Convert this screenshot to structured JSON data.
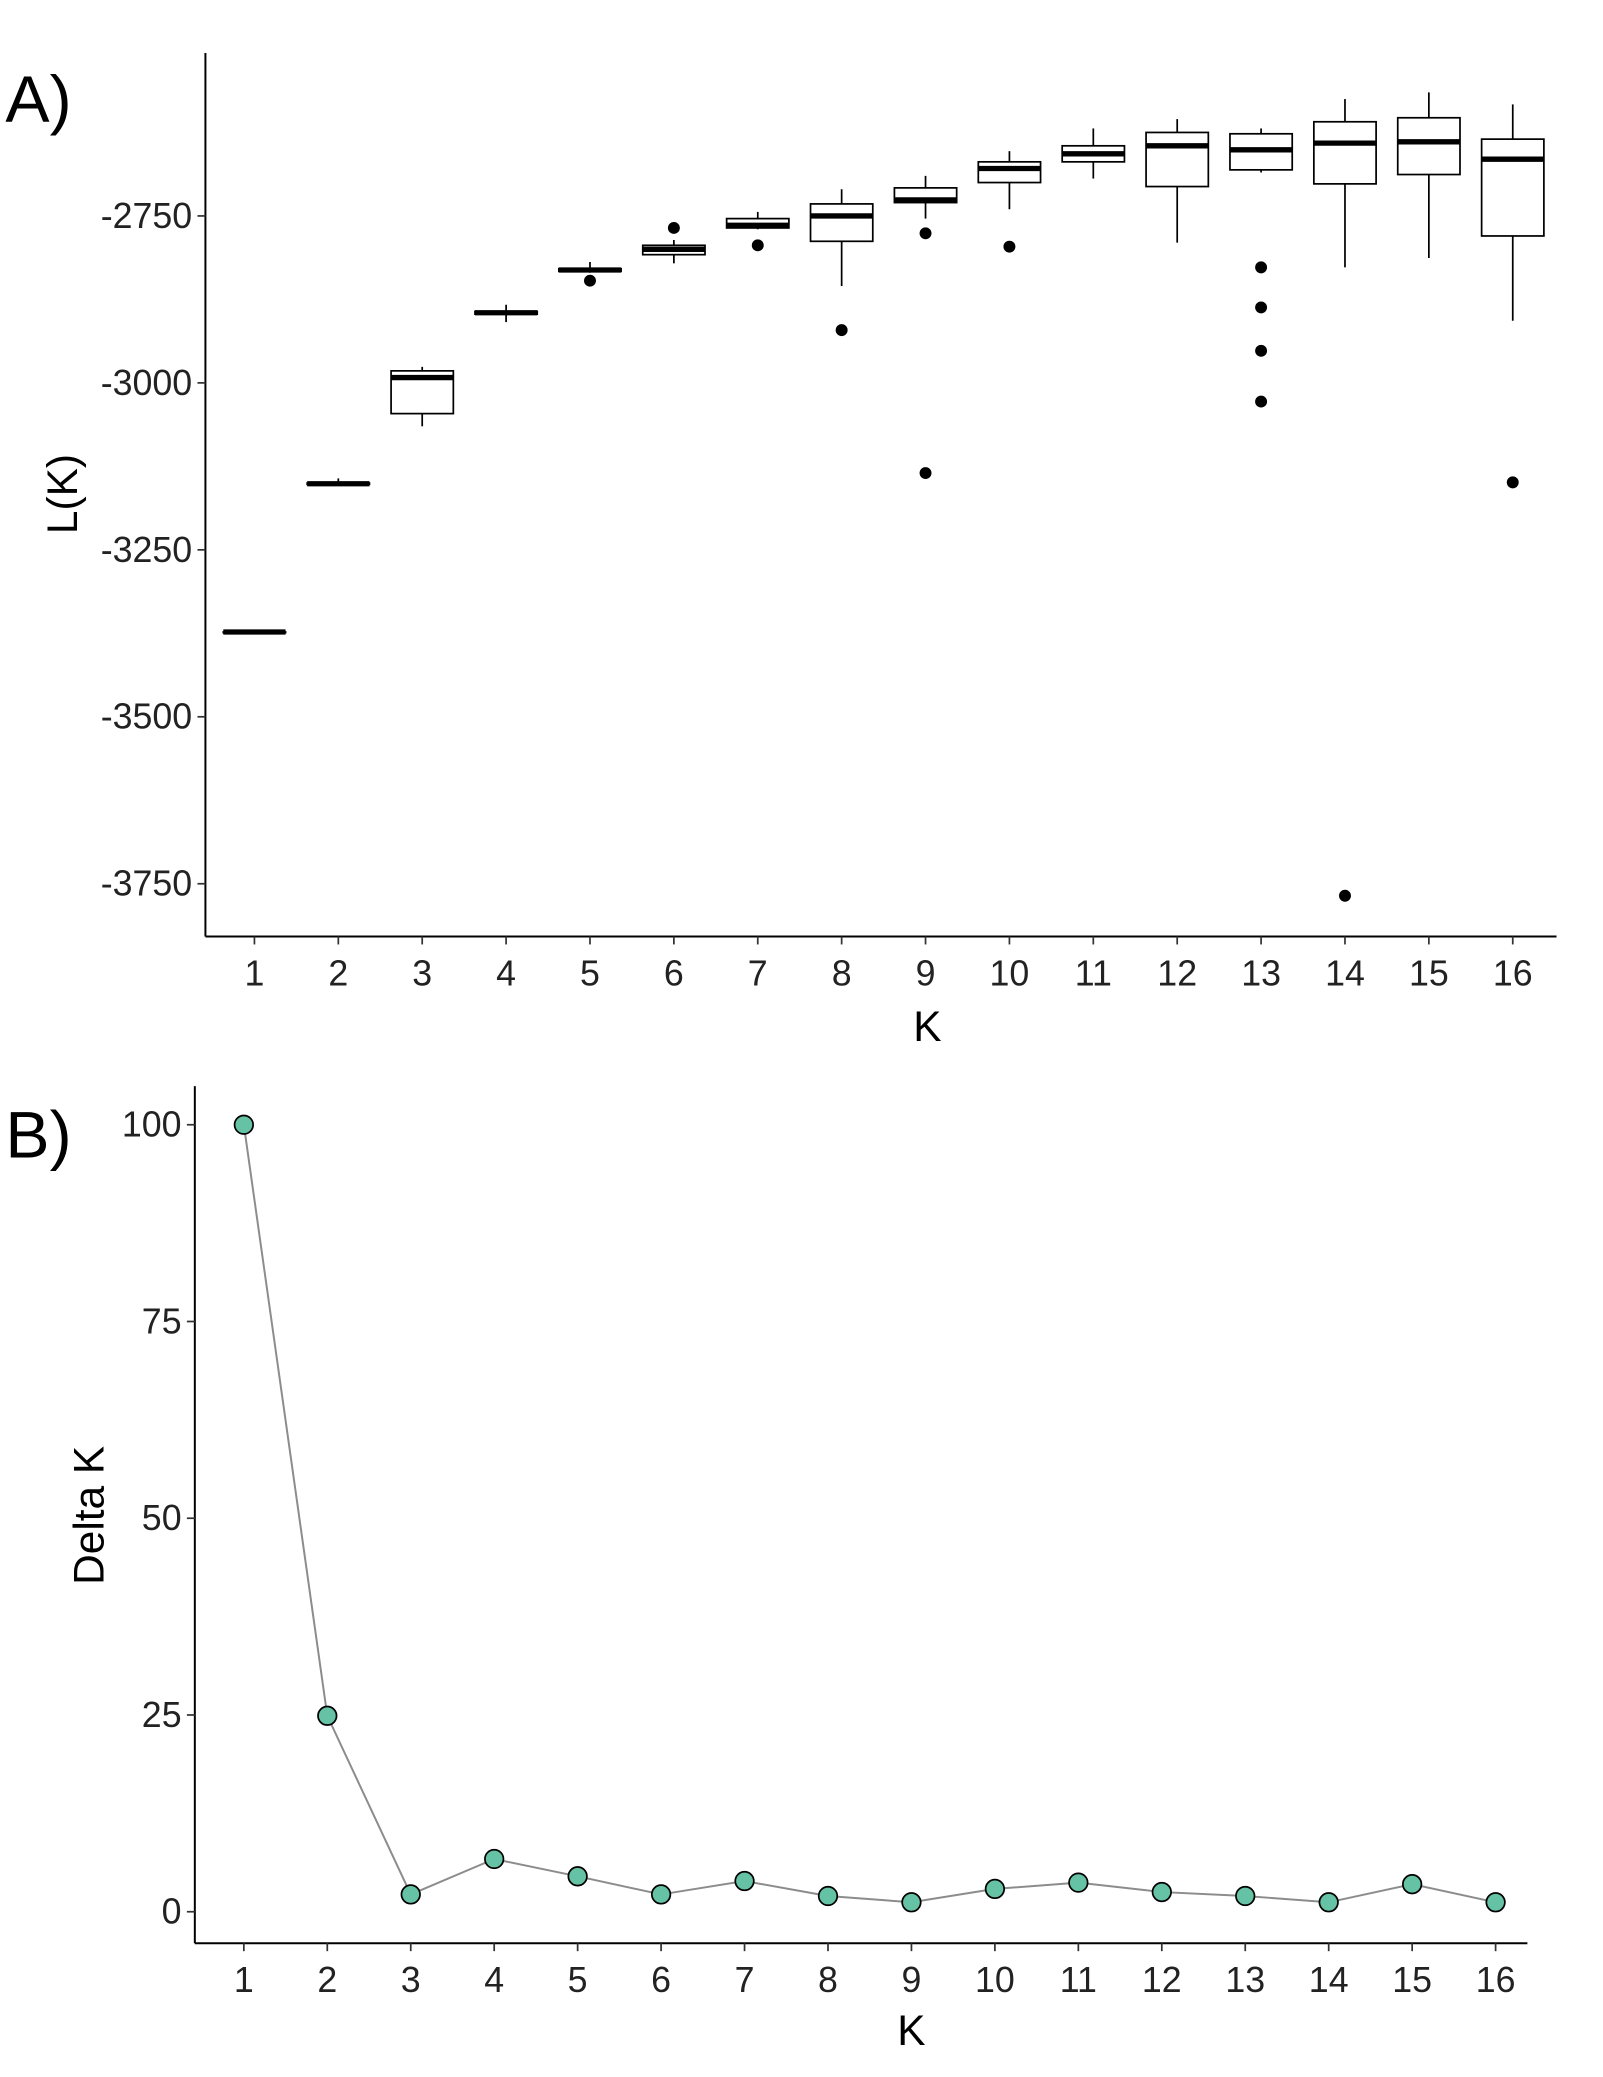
{
  "chart_data": [
    {
      "type": "box",
      "panel_label": "A)",
      "xlabel": "K",
      "ylabel": "L(K)",
      "categories": [
        "1",
        "2",
        "3",
        "4",
        "5",
        "6",
        "7",
        "8",
        "9",
        "10",
        "11",
        "12",
        "13",
        "14",
        "15",
        "16"
      ],
      "ylim": [
        -3829,
        -2506
      ],
      "yticks": [
        -2750,
        -3000,
        -3250,
        -3500,
        -3750
      ],
      "ytick_labels": [
        "-2750",
        "-3000",
        "-3250",
        "-3500",
        "-3750"
      ],
      "grid": false,
      "boxes": [
        {
          "min": -3373,
          "q1": -3373,
          "median": -3373,
          "q3": -3373,
          "max": -3373,
          "outliers": []
        },
        {
          "min": -3152,
          "q1": -3152,
          "median": -3151,
          "q3": -3150,
          "max": -3143,
          "outliers": []
        },
        {
          "min": -3065,
          "q1": -3046,
          "median": -2992,
          "q3": -2982,
          "max": -2976,
          "outliers": []
        },
        {
          "min": -2909,
          "q1": -2897,
          "median": -2895,
          "q3": -2893,
          "max": -2883,
          "outliers": []
        },
        {
          "min": -2835,
          "q1": -2833,
          "median": -2831,
          "q3": -2829,
          "max": -2819,
          "outliers": [
            -2847
          ]
        },
        {
          "min": -2821,
          "q1": -2808,
          "median": -2800,
          "q3": -2794,
          "max": -2786,
          "outliers": [
            -2768
          ]
        },
        {
          "min": -2770,
          "q1": -2768,
          "median": -2764,
          "q3": -2754,
          "max": -2744,
          "outliers": [
            -2794
          ]
        },
        {
          "min": -2855,
          "q1": -2788,
          "median": -2750,
          "q3": -2732,
          "max": -2710,
          "outliers": [
            -2921
          ]
        },
        {
          "min": -2754,
          "q1": -2730,
          "median": -2726,
          "q3": -2708,
          "max": -2690,
          "outliers": [
            -2776,
            -3135
          ]
        },
        {
          "min": -2740,
          "q1": -2700,
          "median": -2679,
          "q3": -2669,
          "max": -2653,
          "outliers": [
            -2796
          ]
        },
        {
          "min": -2694,
          "q1": -2669,
          "median": -2657,
          "q3": -2645,
          "max": -2619,
          "outliers": []
        },
        {
          "min": -2790,
          "q1": -2706,
          "median": -2645,
          "q3": -2625,
          "max": -2605,
          "outliers": []
        },
        {
          "min": -2685,
          "q1": -2681,
          "median": -2651,
          "q3": -2627,
          "max": -2619,
          "outliers": [
            -2827,
            -2887,
            -2952,
            -3028
          ]
        },
        {
          "min": -2827,
          "q1": -2702,
          "median": -2641,
          "q3": -2609,
          "max": -2575,
          "outliers": [
            -3768
          ]
        },
        {
          "min": -2813,
          "q1": -2688,
          "median": -2639,
          "q3": -2603,
          "max": -2565,
          "outliers": []
        },
        {
          "min": -2907,
          "q1": -2780,
          "median": -2665,
          "q3": -2635,
          "max": -2583,
          "outliers": [
            -3149
          ]
        }
      ]
    },
    {
      "type": "line",
      "panel_label": "B)",
      "xlabel": "K",
      "ylabel": "Delta K",
      "x": [
        1,
        2,
        3,
        4,
        5,
        6,
        7,
        8,
        9,
        10,
        11,
        12,
        13,
        14,
        15,
        16
      ],
      "x_labels": [
        "1",
        "2",
        "3",
        "4",
        "5",
        "6",
        "7",
        "8",
        "9",
        "10",
        "11",
        "12",
        "13",
        "14",
        "15",
        "16"
      ],
      "y": [
        100,
        24.9,
        2.2,
        6.7,
        4.5,
        2.2,
        3.9,
        2.0,
        1.2,
        2.9,
        3.7,
        2.5,
        2.0,
        1.2,
        3.5,
        1.2
      ],
      "ylim": [
        -4,
        104.9
      ],
      "yticks": [
        0,
        25,
        50,
        75,
        100
      ],
      "ytick_labels": [
        "0",
        "25",
        "50",
        "75",
        "100"
      ],
      "grid": false,
      "point_color": "#66c2a5",
      "line_color": "#8c8c8c"
    }
  ]
}
